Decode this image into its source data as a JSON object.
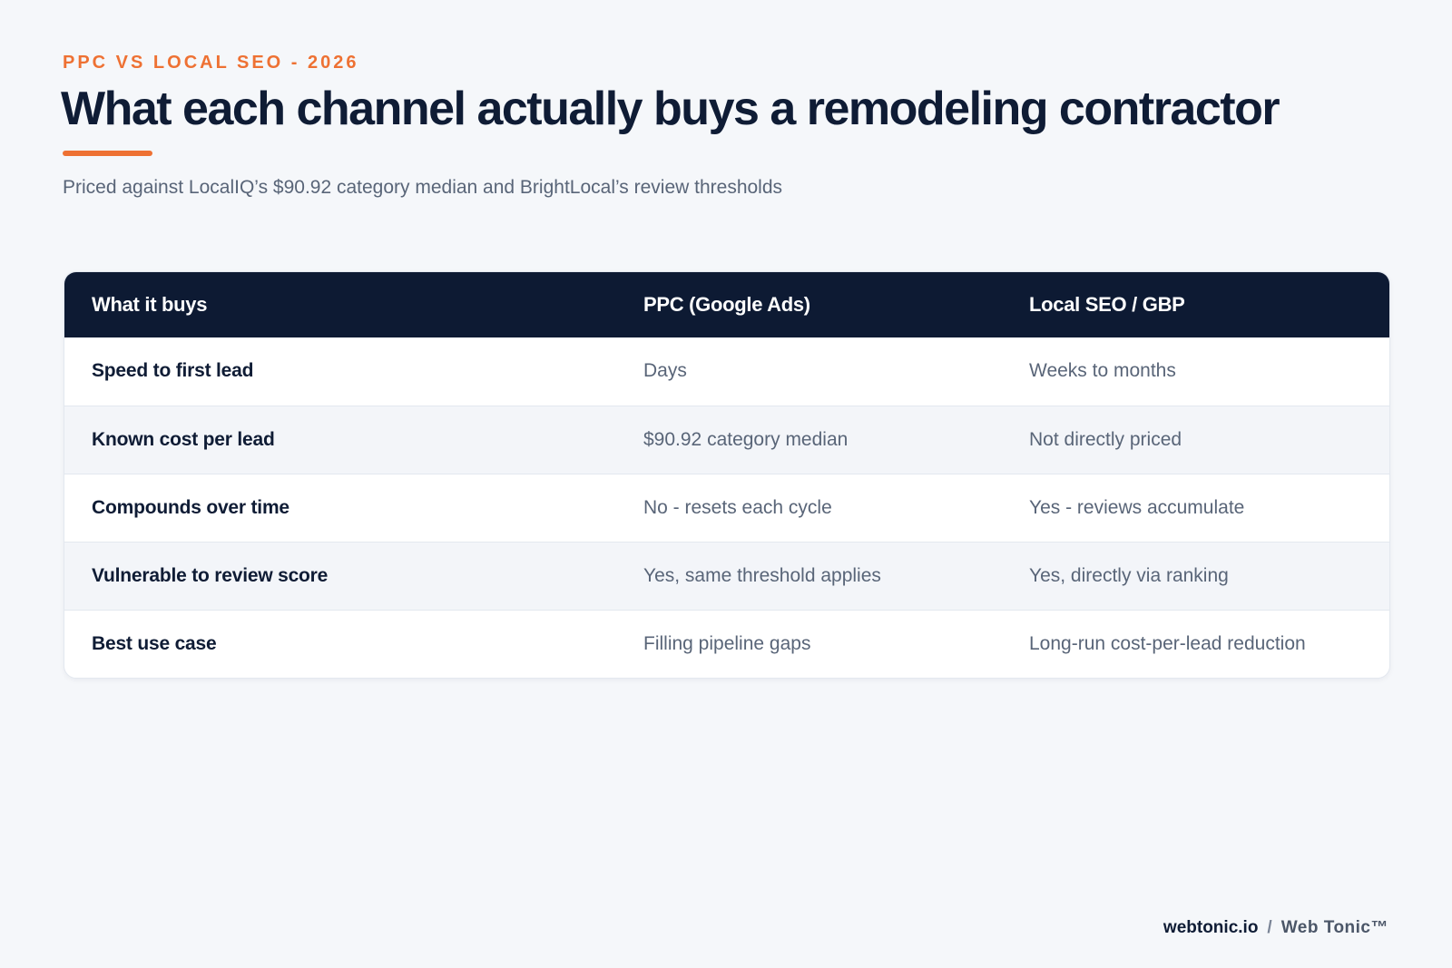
{
  "header": {
    "eyebrow": "PPC VS LOCAL SEO - 2026",
    "title": "What each channel actually buys a remodeling contractor",
    "subtitle": "Priced against LocalIQ’s $90.92 category median and BrightLocal’s review thresholds"
  },
  "colors": {
    "accent": "#ee7133",
    "navy": "#0d1a33",
    "muted_text": "#596578",
    "background": "#f5f7fa"
  },
  "table": {
    "headers": [
      "What it buys",
      "PPC (Google Ads)",
      "Local SEO / GBP"
    ],
    "rows": [
      [
        "Speed to first lead",
        "Days",
        "Weeks to months"
      ],
      [
        "Known cost per lead",
        "$90.92 category median",
        "Not directly priced"
      ],
      [
        "Compounds over time",
        "No - resets each cycle",
        "Yes - reviews accumulate"
      ],
      [
        "Vulnerable to review score",
        "Yes, same threshold applies",
        "Yes, directly via ranking"
      ],
      [
        "Best use case",
        "Filling pipeline gaps",
        "Long-run cost-per-lead reduction"
      ]
    ]
  },
  "footer": {
    "site": "webtonic.io",
    "separator": "/",
    "brand": "Web Tonic™"
  }
}
